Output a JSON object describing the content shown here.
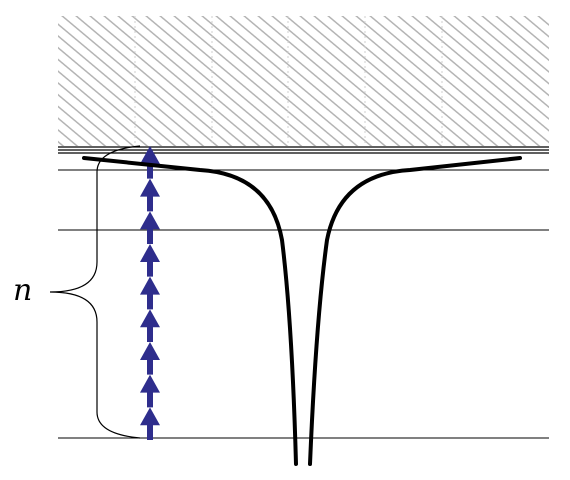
{
  "diagram": {
    "label": "n",
    "arrow_count": 9,
    "colors": {
      "hatch": "#b4b4b4",
      "arrow": "#2e2d8c",
      "line": "#000000",
      "background": "#ffffff"
    }
  }
}
